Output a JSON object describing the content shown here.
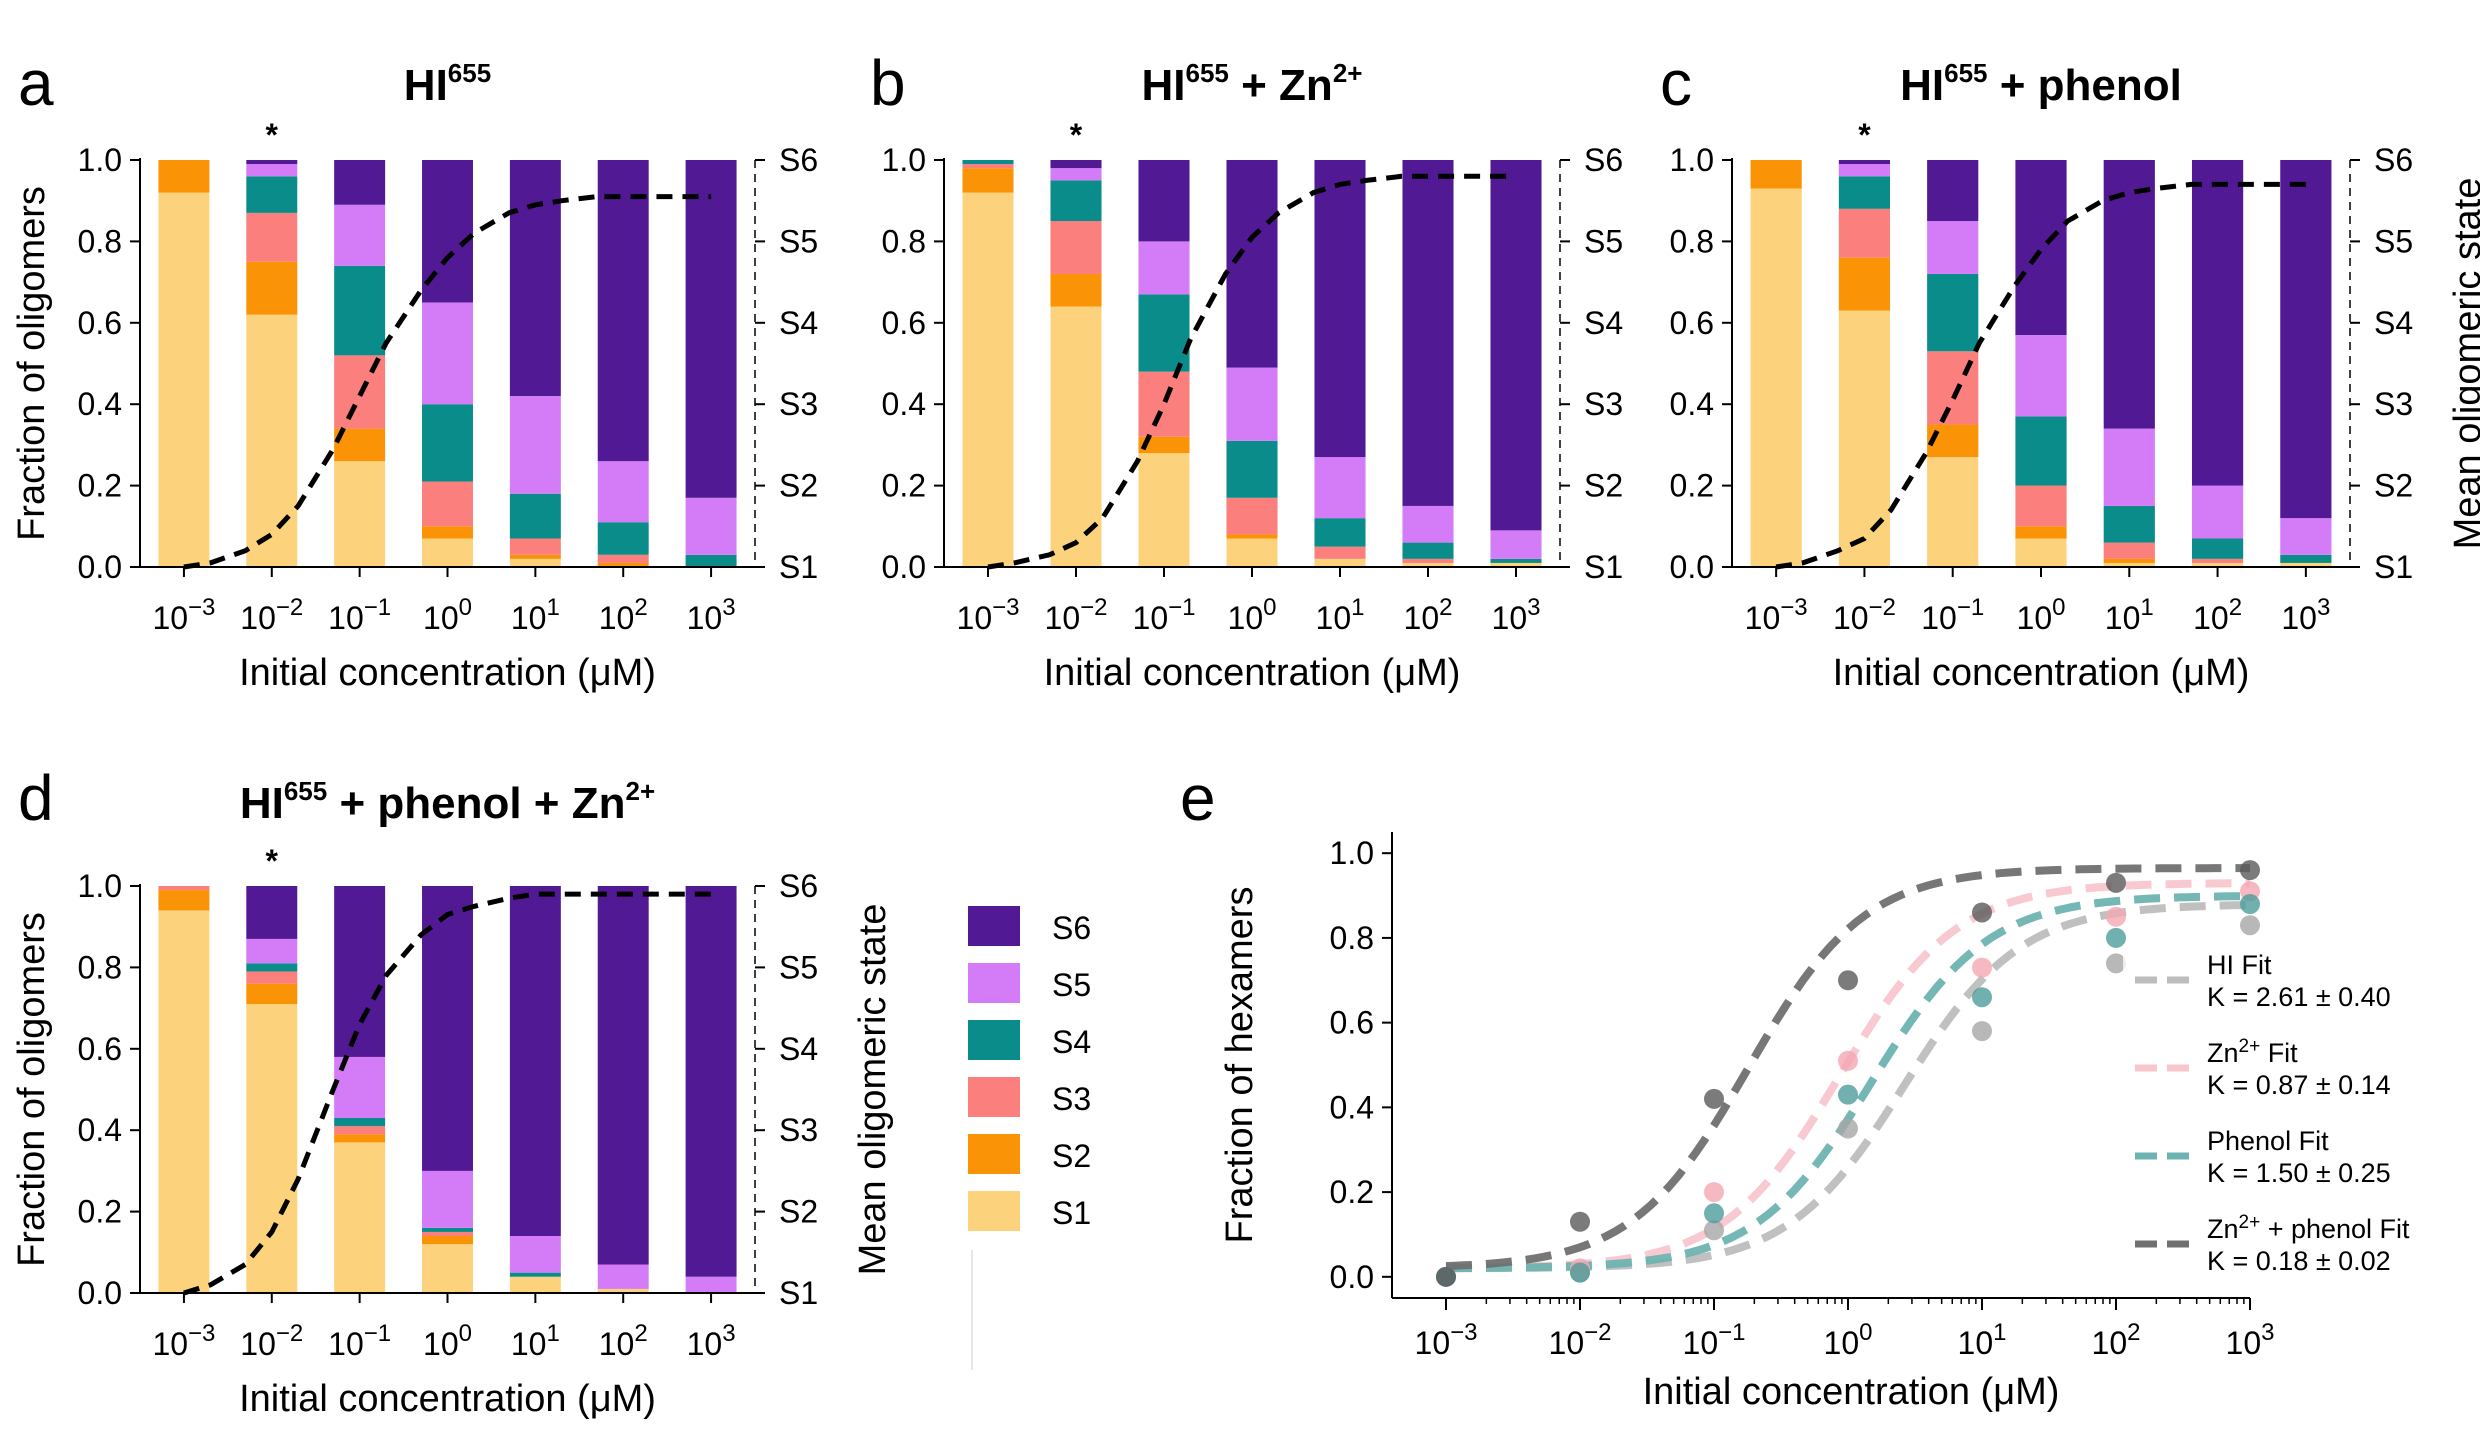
{
  "panel_order": [
    "S1",
    "S2",
    "S3",
    "S4",
    "S5",
    "S6"
  ],
  "colors": {
    "S6": "#521994",
    "S5": "#d47cf7",
    "S4": "#0a8d8a",
    "S3": "#fb7f7c",
    "S2": "#fb9306",
    "S1": "#fdd27c"
  },
  "legend": {
    "items": [
      {
        "key": "S6",
        "label": "S6"
      },
      {
        "key": "S5",
        "label": "S5"
      },
      {
        "key": "S4",
        "label": "S4"
      },
      {
        "key": "S3",
        "label": "S3"
      },
      {
        "key": "S2",
        "label": "S2"
      },
      {
        "key": "S1",
        "label": "S1"
      }
    ]
  },
  "chart_data": [
    {
      "id": "a",
      "type": "bar",
      "stacked": true,
      "letter": "a",
      "title": {
        "base": "HI",
        "sup": "655",
        "rest": ""
      },
      "xlabel": "Initial concentration (μM)",
      "ylabel": "Fraction of oligomers",
      "ylabel_right": "",
      "xscale": "log",
      "categories": [
        "10^-3",
        "10^-2",
        "10^-1",
        "10^0",
        "10^1",
        "10^2",
        "10^3"
      ],
      "x": [
        0.001,
        0.01,
        0.1,
        1,
        10,
        100,
        1000
      ],
      "yticks": [
        "0.0",
        "0.2",
        "0.4",
        "0.6",
        "0.8",
        "1.0"
      ],
      "ylim": [
        0,
        1
      ],
      "right_ticks": [
        "S1",
        "S2",
        "S3",
        "S4",
        "S5",
        "S6"
      ],
      "asterisk_category": "10^-2",
      "stacks": [
        {
          "S6": 0.0,
          "S5": 0.0,
          "S4": 0.0,
          "S3": 0.0,
          "S2": 0.08,
          "S1": 0.92
        },
        {
          "S6": 0.01,
          "S5": 0.03,
          "S4": 0.09,
          "S3": 0.12,
          "S2": 0.13,
          "S1": 0.62
        },
        {
          "S6": 0.11,
          "S5": 0.15,
          "S4": 0.22,
          "S3": 0.18,
          "S2": 0.08,
          "S1": 0.26
        },
        {
          "S6": 0.35,
          "S5": 0.25,
          "S4": 0.19,
          "S3": 0.11,
          "S2": 0.03,
          "S1": 0.07
        },
        {
          "S6": 0.58,
          "S5": 0.24,
          "S4": 0.11,
          "S3": 0.04,
          "S2": 0.01,
          "S1": 0.02
        },
        {
          "S6": 0.74,
          "S5": 0.15,
          "S4": 0.08,
          "S3": 0.02,
          "S2": 0.01,
          "S1": 0.0
        },
        {
          "S6": 0.83,
          "S5": 0.14,
          "S4": 0.03,
          "S3": 0.0,
          "S2": 0.0,
          "S1": 0.0
        }
      ],
      "mean_curve": {
        "x": [
          0.001,
          0.002,
          0.005,
          0.01,
          0.02,
          0.05,
          0.1,
          0.2,
          0.5,
          1,
          2,
          5,
          10,
          20,
          50,
          100,
          200,
          500,
          1000
        ],
        "y": [
          0.0,
          0.01,
          0.04,
          0.08,
          0.15,
          0.29,
          0.42,
          0.55,
          0.68,
          0.76,
          0.82,
          0.87,
          0.89,
          0.9,
          0.91,
          0.91,
          0.91,
          0.91,
          0.91
        ]
      }
    },
    {
      "id": "b",
      "type": "bar",
      "stacked": true,
      "letter": "b",
      "title": {
        "base": "HI",
        "sup": "655",
        "rest": " + Zn",
        "sup2": "2+"
      },
      "xlabel": "Initial concentration (μM)",
      "ylabel": "",
      "ylabel_right": "",
      "xscale": "log",
      "categories": [
        "10^-3",
        "10^-2",
        "10^-1",
        "10^0",
        "10^1",
        "10^2",
        "10^3"
      ],
      "x": [
        0.001,
        0.01,
        0.1,
        1,
        10,
        100,
        1000
      ],
      "yticks": [
        "0.0",
        "0.2",
        "0.4",
        "0.6",
        "0.8",
        "1.0"
      ],
      "ylim": [
        0,
        1
      ],
      "right_ticks": [
        "S1",
        "S2",
        "S3",
        "S4",
        "S5",
        "S6"
      ],
      "asterisk_category": "10^-2",
      "stacks": [
        {
          "S6": 0.0,
          "S5": 0.0,
          "S4": 0.01,
          "S3": 0.01,
          "S2": 0.06,
          "S1": 0.92
        },
        {
          "S6": 0.02,
          "S5": 0.03,
          "S4": 0.1,
          "S3": 0.13,
          "S2": 0.08,
          "S1": 0.64
        },
        {
          "S6": 0.2,
          "S5": 0.13,
          "S4": 0.19,
          "S3": 0.16,
          "S2": 0.04,
          "S1": 0.28
        },
        {
          "S6": 0.51,
          "S5": 0.18,
          "S4": 0.14,
          "S3": 0.09,
          "S2": 0.01,
          "S1": 0.07
        },
        {
          "S6": 0.73,
          "S5": 0.15,
          "S4": 0.07,
          "S3": 0.03,
          "S2": 0.0,
          "S1": 0.02
        },
        {
          "S6": 0.85,
          "S5": 0.09,
          "S4": 0.04,
          "S3": 0.01,
          "S2": 0.0,
          "S1": 0.01
        },
        {
          "S6": 0.91,
          "S5": 0.07,
          "S4": 0.01,
          "S3": 0.0,
          "S2": 0.0,
          "S1": 0.01
        }
      ],
      "mean_curve": {
        "x": [
          0.001,
          0.002,
          0.005,
          0.01,
          0.02,
          0.05,
          0.1,
          0.2,
          0.5,
          1,
          2,
          5,
          10,
          20,
          50,
          100,
          200,
          500,
          1000
        ],
        "y": [
          0.0,
          0.01,
          0.03,
          0.06,
          0.12,
          0.26,
          0.4,
          0.56,
          0.72,
          0.81,
          0.87,
          0.92,
          0.94,
          0.95,
          0.96,
          0.96,
          0.96,
          0.96,
          0.96
        ]
      }
    },
    {
      "id": "c",
      "type": "bar",
      "stacked": true,
      "letter": "c",
      "title": {
        "base": "HI",
        "sup": "655",
        "rest": " + phenol"
      },
      "xlabel": "Initial concentration (μM)",
      "ylabel": "",
      "ylabel_right": "Mean oligomeric state",
      "xscale": "log",
      "categories": [
        "10^-3",
        "10^-2",
        "10^-1",
        "10^0",
        "10^1",
        "10^2",
        "10^3"
      ],
      "x": [
        0.001,
        0.01,
        0.1,
        1,
        10,
        100,
        1000
      ],
      "yticks": [
        "0.0",
        "0.2",
        "0.4",
        "0.6",
        "0.8",
        "1.0"
      ],
      "ylim": [
        0,
        1
      ],
      "right_ticks": [
        "S1",
        "S2",
        "S3",
        "S4",
        "S5",
        "S6"
      ],
      "asterisk_category": "10^-2",
      "stacks": [
        {
          "S6": 0.0,
          "S5": 0.0,
          "S4": 0.0,
          "S3": 0.0,
          "S2": 0.07,
          "S1": 0.93
        },
        {
          "S6": 0.01,
          "S5": 0.03,
          "S4": 0.08,
          "S3": 0.12,
          "S2": 0.13,
          "S1": 0.63
        },
        {
          "S6": 0.15,
          "S5": 0.13,
          "S4": 0.19,
          "S3": 0.18,
          "S2": 0.08,
          "S1": 0.27
        },
        {
          "S6": 0.43,
          "S5": 0.2,
          "S4": 0.17,
          "S3": 0.1,
          "S2": 0.03,
          "S1": 0.07
        },
        {
          "S6": 0.66,
          "S5": 0.19,
          "S4": 0.09,
          "S3": 0.04,
          "S2": 0.01,
          "S1": 0.01
        },
        {
          "S6": 0.8,
          "S5": 0.13,
          "S4": 0.05,
          "S3": 0.01,
          "S2": 0.0,
          "S1": 0.01
        },
        {
          "S6": 0.88,
          "S5": 0.09,
          "S4": 0.02,
          "S3": 0.0,
          "S2": 0.0,
          "S1": 0.01
        }
      ],
      "mean_curve": {
        "x": [
          0.001,
          0.002,
          0.005,
          0.01,
          0.02,
          0.05,
          0.1,
          0.2,
          0.5,
          1,
          2,
          5,
          10,
          20,
          50,
          100,
          200,
          500,
          1000
        ],
        "y": [
          0.0,
          0.01,
          0.04,
          0.07,
          0.14,
          0.28,
          0.41,
          0.55,
          0.69,
          0.78,
          0.85,
          0.9,
          0.92,
          0.93,
          0.94,
          0.94,
          0.94,
          0.94,
          0.94
        ]
      }
    },
    {
      "id": "d",
      "type": "bar",
      "stacked": true,
      "letter": "d",
      "title": {
        "base": "HI",
        "sup": "655",
        "rest": " + phenol + Zn",
        "sup2": "2+"
      },
      "xlabel": "Initial concentration (μM)",
      "ylabel": "Fraction of oligomers",
      "ylabel_right": "Mean oligomeric state",
      "xscale": "log",
      "categories": [
        "10^-3",
        "10^-2",
        "10^-1",
        "10^0",
        "10^1",
        "10^2",
        "10^3"
      ],
      "x": [
        0.001,
        0.01,
        0.1,
        1,
        10,
        100,
        1000
      ],
      "yticks": [
        "0.0",
        "0.2",
        "0.4",
        "0.6",
        "0.8",
        "1.0"
      ],
      "ylim": [
        0,
        1
      ],
      "right_ticks": [
        "S1",
        "S2",
        "S3",
        "S4",
        "S5",
        "S6"
      ],
      "asterisk_category": "10^-2",
      "stacks": [
        {
          "S6": 0.0,
          "S5": 0.0,
          "S4": 0.0,
          "S3": 0.01,
          "S2": 0.05,
          "S1": 0.94
        },
        {
          "S6": 0.13,
          "S5": 0.06,
          "S4": 0.02,
          "S3": 0.03,
          "S2": 0.05,
          "S1": 0.71
        },
        {
          "S6": 0.42,
          "S5": 0.15,
          "S4": 0.02,
          "S3": 0.02,
          "S2": 0.02,
          "S1": 0.37
        },
        {
          "S6": 0.7,
          "S5": 0.14,
          "S4": 0.01,
          "S3": 0.01,
          "S2": 0.02,
          "S1": 0.12
        },
        {
          "S6": 0.86,
          "S5": 0.09,
          "S4": 0.01,
          "S3": 0.0,
          "S2": 0.0,
          "S1": 0.04
        },
        {
          "S6": 0.93,
          "S5": 0.06,
          "S4": 0.0,
          "S3": 0.0,
          "S2": 0.0,
          "S1": 0.01
        },
        {
          "S6": 0.96,
          "S5": 0.04,
          "S4": 0.0,
          "S3": 0.0,
          "S2": 0.0,
          "S1": 0.0
        }
      ],
      "mean_curve": {
        "x": [
          0.001,
          0.002,
          0.005,
          0.01,
          0.02,
          0.05,
          0.1,
          0.2,
          0.5,
          1,
          2,
          5,
          10,
          20,
          50,
          100,
          200,
          500,
          1000
        ],
        "y": [
          0.0,
          0.02,
          0.07,
          0.15,
          0.28,
          0.5,
          0.66,
          0.78,
          0.88,
          0.93,
          0.95,
          0.97,
          0.98,
          0.98,
          0.98,
          0.98,
          0.98,
          0.98,
          0.98
        ]
      }
    },
    {
      "id": "e",
      "type": "scatter",
      "letter": "e",
      "xlabel": "Initial concentration (μM)",
      "ylabel": "Fraction of hexamers",
      "xscale": "log",
      "xticks": [
        "10^-3",
        "10^-2",
        "10^-1",
        "10^0",
        "10^1",
        "10^2",
        "10^3"
      ],
      "x": [
        0.001,
        0.01,
        0.1,
        1,
        10,
        100,
        1000
      ],
      "yticks": [
        "0.0",
        "0.2",
        "0.4",
        "0.6",
        "0.8",
        "1.0"
      ],
      "ylim": [
        0,
        1
      ],
      "series": [
        {
          "label": "HI Fit",
          "k_text": "K = 2.61 ± 0.40",
          "color": "#bdbdbd",
          "point_color": "#a6a6a6",
          "K": 2.61,
          "ymax": 0.88,
          "points": [
            0.0,
            0.01,
            0.11,
            0.35,
            0.58,
            0.74,
            0.83
          ]
        },
        {
          "label": "Zn",
          "label_sup": "2+",
          "label_rest": " Fit",
          "k_text": "K = 0.87 ± 0.14",
          "color": "#f8c6cd",
          "point_color": "#f4a7b3",
          "K": 0.87,
          "ymax": 0.93,
          "points": [
            0.0,
            0.02,
            0.2,
            0.51,
            0.73,
            0.85,
            0.91
          ]
        },
        {
          "label": "Phenol Fit",
          "k_text": "K = 1.50 ± 0.25",
          "color": "#6db3b1",
          "point_color": "#4c9c9a",
          "K": 1.5,
          "ymax": 0.9,
          "points": [
            0.0,
            0.01,
            0.15,
            0.43,
            0.66,
            0.8,
            0.88
          ]
        },
        {
          "label": "Zn",
          "label_sup": "2+",
          "label_rest": " + phenol Fit",
          "k_text": "K = 0.18 ± 0.02",
          "color": "#707070",
          "point_color": "#5a5a5a",
          "K": 0.18,
          "ymax": 0.965,
          "points": [
            0.0,
            0.13,
            0.42,
            0.7,
            0.86,
            0.93,
            0.96
          ]
        }
      ]
    }
  ]
}
